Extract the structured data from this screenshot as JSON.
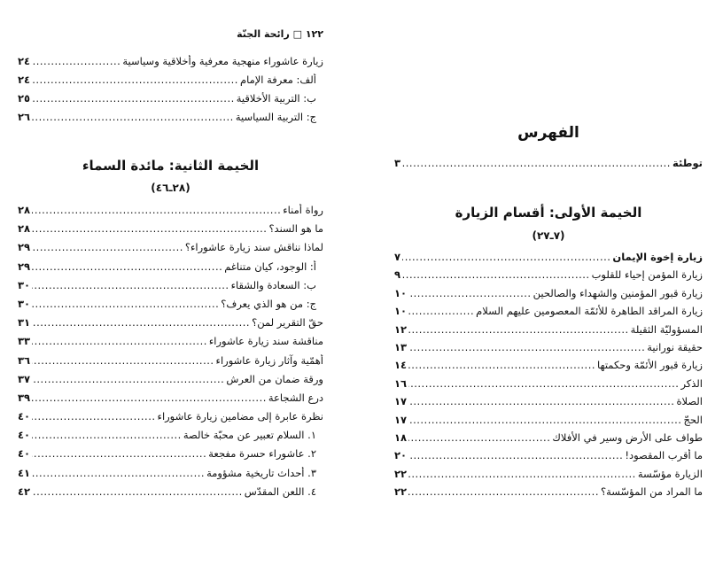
{
  "left_page": {
    "running_header": "١٢٢ □ رائحة الجنّة",
    "entries_top": [
      {
        "title": "زيارة عاشوراء منهجية معرفية وأخلاقية وسياسية",
        "page": "٢٤",
        "sub": false
      },
      {
        "title": "ألف: معرفة الإمام",
        "page": "٢٤",
        "sub": true
      },
      {
        "title": "ب: التربية الأخلاقية",
        "page": "٢٥",
        "sub": true
      },
      {
        "title": "ج: التربية السياسية",
        "page": "٢٦",
        "sub": true
      }
    ],
    "section_title": "الخيمة الثانية: مائدة السماء",
    "section_range": "(٢٨ـ٤٦)",
    "entries": [
      {
        "title": "رواة أمناء",
        "page": "٢٨",
        "sub": false
      },
      {
        "title": "ما هو السند؟",
        "page": "٢٨",
        "sub": false
      },
      {
        "title": "لماذا نناقش سند زيارة عاشوراء؟",
        "page": "٢٩",
        "sub": false
      },
      {
        "title": "أ: الوجود، كيان متناغم",
        "page": "٢٩",
        "sub": true
      },
      {
        "title": "ب: السعادة والشقاء",
        "page": "٣٠",
        "sub": true
      },
      {
        "title": "ج: من هو الذي يعرف؟",
        "page": "٣٠",
        "sub": true
      },
      {
        "title": "حقّ التقرير لمن؟",
        "page": "٣١",
        "sub": false
      },
      {
        "title": "مناقشة سند زيارة عاشوراء",
        "page": "٣٣",
        "sub": false
      },
      {
        "title": "أهمّية وآثار زيارة عاشوراء",
        "page": "٣٦",
        "sub": false
      },
      {
        "title": "ورقة ضمان من العرش",
        "page": "٣٧",
        "sub": false
      },
      {
        "title": "درع الشجاعة",
        "page": "٣٩",
        "sub": false
      },
      {
        "title": "نظرة عابرة إلى مضامين زيارة عاشوراء",
        "page": "٤٠",
        "sub": false
      },
      {
        "title": "١. السلام تعبير عن محبّة خالصة",
        "page": "٤٠",
        "sub": true
      },
      {
        "title": "٢. عاشوراء حسرة مفجعة",
        "page": "٤٠",
        "sub": true
      },
      {
        "title": "٣. أحداث تاريخية مشؤومة",
        "page": "٤١",
        "sub": true
      },
      {
        "title": "٤. اللعن المقدّس",
        "page": "٤٢",
        "sub": true
      }
    ]
  },
  "right_page": {
    "index_title": "الفهرس",
    "intro": {
      "title": "توطئة",
      "page": "٣"
    },
    "section_title": "الخيمة الأولى: أقسام الزيارة",
    "section_range": "(٧ـ٢٧)",
    "entries": [
      {
        "title": "زيارة إخوة الإيمان",
        "page": "٧",
        "bold": true
      },
      {
        "title": "زيارة المؤمن إحياء للقلوب",
        "page": "٩",
        "bold": false
      },
      {
        "title": "زيارة قبور المؤمنين والشهداء والصالحين",
        "page": "١٠",
        "bold": false
      },
      {
        "title": "زيارة المراقد الطاهرة للأئمّة المعصومين عليهم السلام",
        "page": "١٠",
        "bold": false
      },
      {
        "title": "المسؤوليّة الثقيلة",
        "page": "١٢",
        "bold": false
      },
      {
        "title": "حقيقة نورانية",
        "page": "١٣",
        "bold": false
      },
      {
        "title": "زيارة قبور الأئمّة وحكمتها",
        "page": "١٤",
        "bold": false
      },
      {
        "title": "الذكر",
        "page": "١٦",
        "bold": false
      },
      {
        "title": "الصلاة",
        "page": "١٧",
        "bold": false
      },
      {
        "title": "الحجّ",
        "page": "١٧",
        "bold": false
      },
      {
        "title": "طواف على الأرض وسير في الأفلاك",
        "page": "١٨",
        "bold": false
      },
      {
        "title": "ما أقرب المقصود!",
        "page": "٢٠",
        "bold": false
      },
      {
        "title": "الزيارة مؤسّسة",
        "page": "٢٢",
        "bold": false
      },
      {
        "title": "ما المراد من المؤسّسة؟",
        "page": "٢٢",
        "bold": false
      }
    ]
  }
}
